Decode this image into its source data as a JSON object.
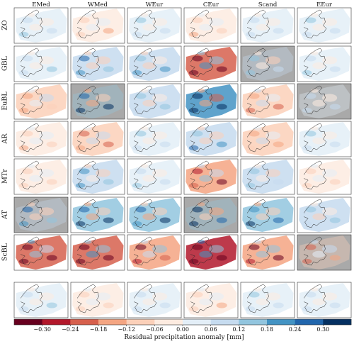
{
  "chart_data": {
    "type": "heatmap",
    "description_title": "",
    "columns": [
      "EMed",
      "WMed",
      "WEur",
      "CEur",
      "Scand",
      "EEur"
    ],
    "rows": [
      "ZO",
      "GBL",
      "EuBL",
      "AR",
      "MTr",
      "AT",
      "ScBL",
      ""
    ],
    "grey_panels": [
      [
        1,
        4
      ],
      [
        2,
        1
      ],
      [
        2,
        5
      ],
      [
        5,
        0
      ],
      [
        5,
        3
      ],
      [
        6,
        5
      ]
    ],
    "panel_intensity": [
      [
        0.05,
        -0.05,
        0.05,
        -0.05,
        0.04,
        0.05
      ],
      [
        0.05,
        0.1,
        0.08,
        -0.2,
        0.06,
        0.05
      ],
      [
        -0.06,
        0.15,
        0.06,
        0.2,
        -0.08,
        0.04
      ],
      [
        -0.05,
        -0.08,
        0.05,
        0.1,
        -0.06,
        0.05
      ],
      [
        -0.04,
        0.08,
        0.05,
        -0.12,
        0.06,
        -0.04
      ],
      [
        0.1,
        0.15,
        0.12,
        0.15,
        0.12,
        0.06
      ],
      [
        -0.18,
        -0.2,
        -0.12,
        -0.25,
        -0.15,
        -0.08
      ],
      [
        0.05,
        -0.04,
        0.04,
        -0.05,
        0.05,
        0.04
      ]
    ],
    "colorbar": {
      "ticks": [
        "−0.30",
        "−0.24",
        "−0.18",
        "−0.12",
        "−0.06",
        "0.00",
        "0.06",
        "0.12",
        "0.18",
        "0.24",
        "0.30"
      ],
      "colors": [
        "#67001f",
        "#b2182b",
        "#d6604d",
        "#f4a582",
        "#fbd0b9",
        "#fdebe0",
        "#e3eef7",
        "#c6dbef",
        "#92c5de",
        "#4393c3",
        "#2166ac",
        "#053061"
      ],
      "label": "Residual precipitation anomaly [mm]",
      "range": [
        -0.33,
        0.33
      ]
    }
  }
}
